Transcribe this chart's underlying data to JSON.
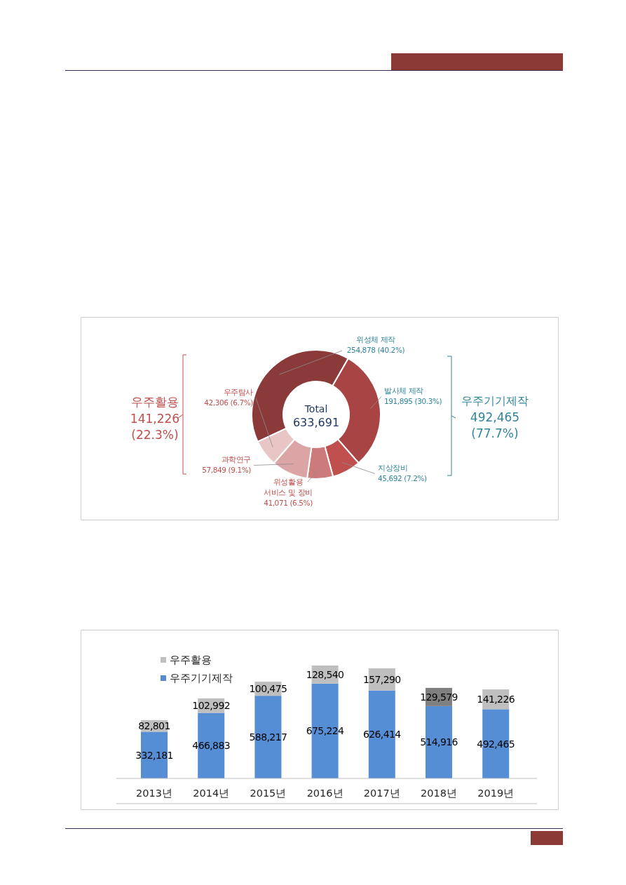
{
  "chart_data": [
    {
      "type": "donut",
      "categories": [
        "위성체 제작",
        "발사체 제작",
        "지상장비",
        "위성활용 서비스 및 장비",
        "과학연구",
        "우주탐사"
      ],
      "values": [
        254878,
        191895,
        45692,
        41071,
        57849,
        42306
      ],
      "value_labels": [
        "254,878 (40.2%)",
        "191,895 (30.3%)",
        "45,692 (7.2%)",
        "41,071 (6.5%)",
        "57,849 (9.1%)",
        "42,306 (6.7%)"
      ],
      "colors": [
        "#8b3a3a",
        "#a84444",
        "#c0504d",
        "#cd7a7a",
        "#dba5a5",
        "#e8c6c6"
      ],
      "annotations": [
        "Total",
        "633,691",
        "우주활용",
        "141,226",
        "(22.3%)",
        "우주기기제작",
        "492,465",
        "(77.7%)"
      ]
    },
    {
      "type": "bar",
      "stacked": true,
      "legend": "top left",
      "categories": [
        "2013년",
        "2014년",
        "2015년",
        "2016년",
        "2017년",
        "2018년",
        "2019년"
      ],
      "series": [
        {
          "name": "우주기기제작",
          "color": "#558ed5",
          "values": [
            332181,
            466883,
            588217,
            675224,
            626414,
            514916,
            492465
          ],
          "value_labels": [
            "332,181",
            "466,883",
            "588,217",
            "675,224",
            "626,414",
            "514,916",
            "492,465"
          ]
        },
        {
          "name": "우주활용",
          "color": "#bfbfbf",
          "colors": [
            "#bfbfbf",
            "#bfbfbf",
            "#bfbfbf",
            "#bfbfbf",
            "#bfbfbf",
            "#7f7f7f",
            "#bfbfbf"
          ],
          "values": [
            82801,
            102992,
            100475,
            128540,
            157290,
            129579,
            141226
          ],
          "value_labels": [
            "82,801",
            "102,992",
            "100,475",
            "128,540",
            "157,290",
            "129,579",
            "141,226"
          ]
        }
      ]
    }
  ]
}
